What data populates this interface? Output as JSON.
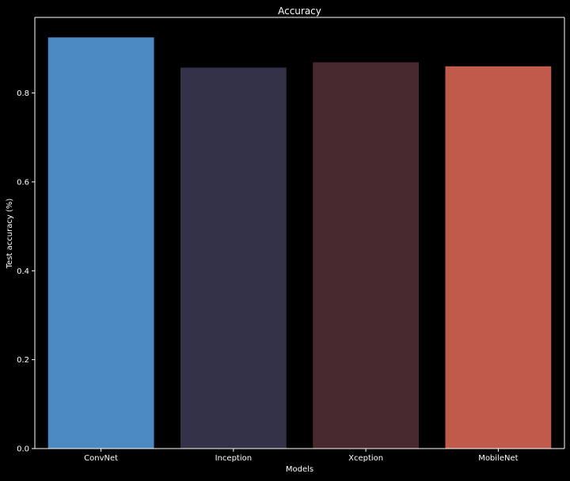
{
  "chart_data": {
    "type": "bar",
    "title": "Accuracy",
    "xlabel": "Models",
    "ylabel": "Test accuracy (%)",
    "categories": [
      "ConvNet",
      "Inception",
      "Xception",
      "MobileNet"
    ],
    "values": [
      0.925,
      0.857,
      0.869,
      0.86
    ],
    "colors": [
      "#4a89c2",
      "#343248",
      "#48292d",
      "#c05a4a"
    ],
    "ylim": [
      0,
      0.97
    ],
    "yticks": [
      0.0,
      0.2,
      0.4,
      0.6,
      0.8
    ],
    "ytick_labels": [
      "0.0",
      "0.2",
      "0.4",
      "0.6",
      "0.8"
    ],
    "grid": false,
    "legend": "none",
    "background": "#000000",
    "axis_color": "#ffffff"
  }
}
